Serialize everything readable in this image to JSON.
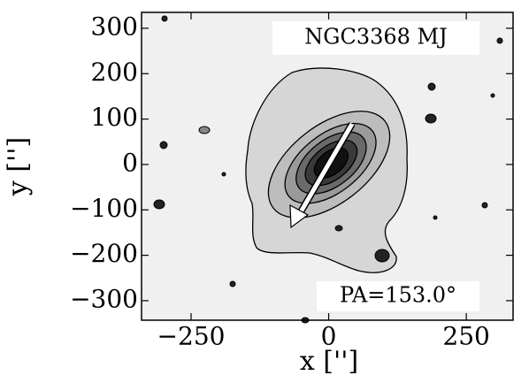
{
  "chart_data": {
    "type": "image",
    "title": "NGC3368 MJ",
    "annotation": "PA=153.0°",
    "x_label": "x ['']",
    "y_label": "y ['']",
    "xlim": [
      -340,
      335
    ],
    "ylim": [
      -343,
      335
    ],
    "xticks": [
      {
        "value": -250,
        "label": "−250"
      },
      0,
      250
    ],
    "yticks": [
      {
        "value": -300,
        "label": "−300"
      },
      {
        "value": -200,
        "label": "−200"
      },
      {
        "value": -100,
        "label": "−100"
      },
      0,
      100,
      200,
      300
    ]
  }
}
